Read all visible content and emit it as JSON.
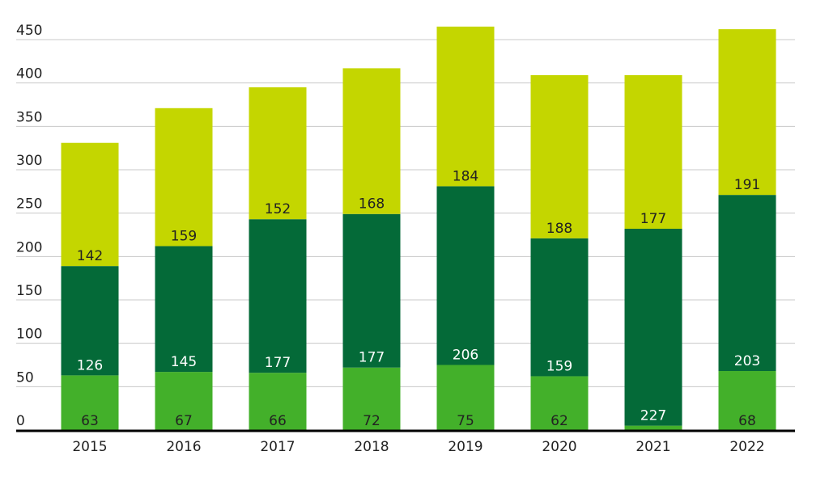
{
  "chart_data": {
    "type": "stacked-bar",
    "categories": [
      "2015",
      "2016",
      "2017",
      "2018",
      "2019",
      "2020",
      "2021",
      "2022"
    ],
    "series": [
      {
        "values": [
          63,
          67,
          66,
          72,
          75,
          62,
          5,
          68
        ],
        "color": "#43b02a",
        "label_color": "#222222",
        "labels": [
          "63",
          "67",
          "66",
          "72",
          "75",
          "62",
          "",
          "68"
        ]
      },
      {
        "values": [
          126,
          145,
          177,
          177,
          206,
          159,
          227,
          203
        ],
        "color": "#046a38",
        "label_color": "#ffffff",
        "labels": [
          "126",
          "145",
          "177",
          "177",
          "206",
          "159",
          "227",
          "203"
        ]
      },
      {
        "values": [
          142,
          159,
          152,
          168,
          184,
          188,
          177,
          191
        ],
        "color": "#c4d600",
        "label_color": "#222222",
        "labels": [
          "142",
          "159",
          "152",
          "168",
          "184",
          "188",
          "177",
          "191"
        ]
      }
    ],
    "yticks": [
      "0",
      "50",
      "100",
      "150",
      "200",
      "250",
      "300",
      "350",
      "400",
      "450"
    ],
    "ylim": [
      0,
      450
    ],
    "grid": true,
    "title": "",
    "xlabel": "",
    "ylabel": ""
  }
}
